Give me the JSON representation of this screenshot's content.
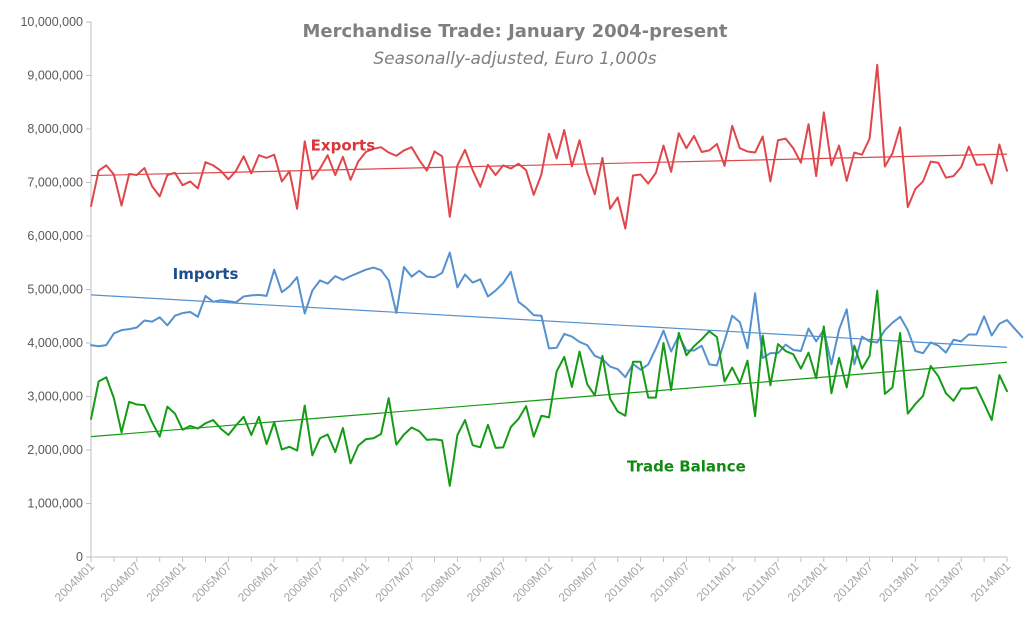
{
  "chart_data": {
    "type": "line",
    "title": "Merchandise Trade: January 2004-present",
    "subtitle": "Seasonally-adjusted, Euro 1,000s",
    "xlabel": "",
    "ylabel": "",
    "ylim": [
      0,
      10000000
    ],
    "y_ticks": [
      0,
      1000000,
      2000000,
      3000000,
      4000000,
      5000000,
      6000000,
      7000000,
      8000000,
      9000000,
      10000000
    ],
    "y_tick_labels": [
      "0",
      "1,000,000",
      "2,000,000",
      "3,000,000",
      "4,000,000",
      "5,000,000",
      "6,000,000",
      "7,000,000",
      "8,000,000",
      "9,000,000",
      "10,000,000"
    ],
    "x_start": "2004M01",
    "x_end": "2014M03",
    "x_tick_labels": [
      "2004M01",
      "2004M07",
      "2005M01",
      "2005M07",
      "2006M01",
      "2006M07",
      "2007M01",
      "2007M07",
      "2008M01",
      "2008M07",
      "2009M01",
      "2009M07",
      "2010M01",
      "2010M07",
      "2011M01",
      "2011M07",
      "2012M01",
      "2012M07",
      "2013M01",
      "2013M07",
      "2014M01"
    ],
    "grid": false,
    "legend": "inline labels",
    "series": [
      {
        "name": "Exports",
        "color": "#e0474c",
        "label_month": "2006M10",
        "label_value": 7600000,
        "trendline": {
          "start": 7130000,
          "end": 7530000
        },
        "values": [
          6560000,
          7220000,
          7320000,
          7150000,
          6570000,
          7160000,
          7140000,
          7270000,
          6930000,
          6740000,
          7140000,
          7180000,
          6950000,
          7020000,
          6890000,
          7380000,
          7320000,
          7220000,
          7060000,
          7220000,
          7490000,
          7170000,
          7510000,
          7460000,
          7520000,
          7020000,
          7210000,
          6510000,
          7770000,
          7060000,
          7260000,
          7510000,
          7140000,
          7480000,
          7050000,
          7390000,
          7570000,
          7630000,
          7660000,
          7560000,
          7500000,
          7600000,
          7660000,
          7420000,
          7220000,
          7580000,
          7490000,
          6360000,
          7320000,
          7610000,
          7230000,
          6920000,
          7330000,
          7140000,
          7320000,
          7260000,
          7350000,
          7230000,
          6770000,
          7150000,
          7910000,
          7450000,
          7980000,
          7300000,
          7790000,
          7190000,
          6780000,
          7460000,
          6510000,
          6720000,
          6140000,
          7130000,
          7150000,
          6980000,
          7180000,
          7690000,
          7200000,
          7920000,
          7640000,
          7870000,
          7570000,
          7600000,
          7720000,
          7310000,
          8060000,
          7640000,
          7580000,
          7560000,
          7860000,
          7020000,
          7790000,
          7820000,
          7640000,
          7370000,
          8090000,
          7120000,
          8310000,
          7320000,
          7690000,
          7030000,
          7560000,
          7520000,
          7820000,
          9200000,
          7300000,
          7550000,
          8030000,
          6540000,
          6880000,
          7020000,
          7390000,
          7370000,
          7090000,
          7120000,
          7290000,
          7670000,
          7330000,
          7340000,
          6980000,
          7710000,
          7220000
        ]
      },
      {
        "name": "Imports",
        "color": "#5591cf",
        "label_month": "2005M04",
        "label_value": 5200000,
        "trendline": {
          "start": 4900000,
          "end": 3920000
        },
        "values": [
          3960000,
          3940000,
          3960000,
          4180000,
          4240000,
          4260000,
          4290000,
          4420000,
          4400000,
          4480000,
          4330000,
          4510000,
          4560000,
          4580000,
          4490000,
          4880000,
          4770000,
          4800000,
          4780000,
          4760000,
          4870000,
          4890000,
          4900000,
          4880000,
          5370000,
          4950000,
          5060000,
          5230000,
          4550000,
          4980000,
          5170000,
          5110000,
          5250000,
          5180000,
          5250000,
          5310000,
          5370000,
          5410000,
          5360000,
          5170000,
          4560000,
          5420000,
          5240000,
          5350000,
          5240000,
          5230000,
          5310000,
          5690000,
          5040000,
          5280000,
          5130000,
          5190000,
          4870000,
          4980000,
          5120000,
          5330000,
          4770000,
          4660000,
          4520000,
          4510000,
          3900000,
          3910000,
          4170000,
          4120000,
          4020000,
          3960000,
          3760000,
          3700000,
          3560000,
          3510000,
          3360000,
          3610000,
          3500000,
          3600000,
          3900000,
          4230000,
          3840000,
          4140000,
          3860000,
          3860000,
          3950000,
          3600000,
          3580000,
          4040000,
          4510000,
          4390000,
          3900000,
          4930000,
          3720000,
          3810000,
          3810000,
          3970000,
          3870000,
          3850000,
          4270000,
          4030000,
          4250000,
          3600000,
          4250000,
          4630000,
          3600000,
          4120000,
          4030000,
          4010000,
          4240000,
          4380000,
          4490000,
          4240000,
          3850000,
          3810000,
          4010000,
          3950000,
          3820000,
          4060000,
          4030000,
          4160000,
          4160000,
          4500000,
          4140000,
          4360000,
          4430000,
          4270000,
          4110000
        ]
      },
      {
        "name": "Trade Balance",
        "color": "#169b16",
        "label_month": "2010M07",
        "label_value": 1600000,
        "trendline": {
          "start": 2250000,
          "end": 3640000
        },
        "values": [
          2580000,
          3280000,
          3360000,
          2970000,
          2330000,
          2900000,
          2850000,
          2840000,
          2520000,
          2250000,
          2810000,
          2680000,
          2380000,
          2450000,
          2400000,
          2500000,
          2560000,
          2400000,
          2280000,
          2460000,
          2620000,
          2280000,
          2620000,
          2110000,
          2520000,
          2010000,
          2060000,
          1990000,
          2830000,
          1900000,
          2220000,
          2290000,
          1960000,
          2410000,
          1750000,
          2080000,
          2200000,
          2220000,
          2300000,
          2970000,
          2100000,
          2290000,
          2420000,
          2350000,
          2190000,
          2200000,
          2180000,
          1330000,
          2280000,
          2560000,
          2090000,
          2050000,
          2470000,
          2040000,
          2050000,
          2430000,
          2580000,
          2820000,
          2250000,
          2640000,
          2610000,
          3470000,
          3740000,
          3180000,
          3840000,
          3230000,
          3020000,
          3760000,
          2960000,
          2720000,
          2640000,
          3650000,
          3650000,
          2980000,
          2980000,
          4000000,
          3120000,
          4190000,
          3770000,
          3940000,
          4070000,
          4220000,
          4110000,
          3280000,
          3540000,
          3250000,
          3670000,
          2630000,
          4140000,
          3210000,
          3980000,
          3850000,
          3790000,
          3520000,
          3820000,
          3340000,
          4310000,
          3060000,
          3720000,
          3170000,
          3950000,
          3520000,
          3760000,
          4980000,
          3050000,
          3170000,
          4190000,
          2680000,
          2860000,
          3010000,
          3570000,
          3380000,
          3060000,
          2920000,
          3150000,
          3150000,
          3170000,
          2870000,
          2560000,
          3400000,
          3100000
        ]
      }
    ]
  }
}
